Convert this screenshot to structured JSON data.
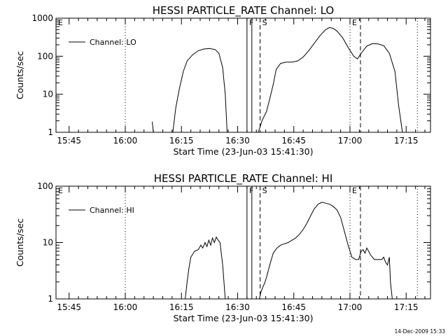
{
  "footer": {
    "timestamp": "14-Dec-2009 15:33"
  },
  "chart_data": [
    {
      "type": "line",
      "title": "HESSI PARTICLE_RATE Channel: LO",
      "xlabel": "Start Time (23-Jun-03 15:41:30)",
      "ylabel": "Counts/sec",
      "x_unit": "minutes since 15:41:30",
      "xlim": [
        0,
        100
      ],
      "ylim": [
        1,
        1000
      ],
      "yscale": "log",
      "x_ticks": [
        {
          "label": "15:45",
          "x": 3.5
        },
        {
          "label": "16:00",
          "x": 18.5
        },
        {
          "label": "16:15",
          "x": 33.5
        },
        {
          "label": "16:30",
          "x": 48.5
        },
        {
          "label": "16:45",
          "x": 63.5
        },
        {
          "label": "17:00",
          "x": 78.5
        },
        {
          "label": "17:15",
          "x": 93.5
        }
      ],
      "y_ticks": [
        {
          "label": "1",
          "y": 1
        },
        {
          "label": "10",
          "y": 10
        },
        {
          "label": "100",
          "y": 100
        },
        {
          "label": "1000",
          "y": 1000
        }
      ],
      "legend": {
        "position": "top-left",
        "entries": [
          "Channel: LO"
        ]
      },
      "grid": false,
      "event_markers": [
        {
          "x": 0.0,
          "label": "E",
          "style": "solid"
        },
        {
          "x": 18.5,
          "label": "",
          "style": "dotted"
        },
        {
          "x": 51.0,
          "label": "F",
          "style": "solid"
        },
        {
          "x": 52.3,
          "label": "",
          "style": "solid"
        },
        {
          "x": 54.5,
          "label": "S",
          "style": "dashed"
        },
        {
          "x": 78.5,
          "label": "E",
          "style": "dotted"
        },
        {
          "x": 81.3,
          "label": "",
          "style": "dashed"
        },
        {
          "x": 96.5,
          "label": "",
          "style": "dotted"
        }
      ],
      "series": [
        {
          "name": "Channel: LO",
          "segments": [
            [
              [
                25.7,
                1.9
              ],
              [
                26.0,
                1.0
              ]
            ],
            [
              [
                31.2,
                1.0
              ],
              [
                32.0,
                4.5
              ],
              [
                33.0,
                15
              ],
              [
                34.0,
                40
              ],
              [
                35.0,
                75
              ],
              [
                36.5,
                110
              ],
              [
                38.0,
                140
              ],
              [
                39.5,
                155
              ],
              [
                41.0,
                160
              ],
              [
                42.5,
                150
              ],
              [
                43.5,
                120
              ],
              [
                44.5,
                50
              ],
              [
                45.2,
                10
              ],
              [
                45.7,
                1.0
              ]
            ],
            [
              [
                54.0,
                1.0
              ],
              [
                54.5,
                1.4
              ],
              [
                55.0,
                2.0
              ],
              [
                55.7,
                2.8
              ],
              [
                56.2,
                3.5
              ],
              [
                57.0,
                7
              ],
              [
                58.0,
                18
              ],
              [
                58.8,
                45
              ],
              [
                60.0,
                65
              ],
              [
                61.5,
                70
              ],
              [
                63.0,
                70
              ],
              [
                64.5,
                75
              ],
              [
                66.0,
                95
              ],
              [
                67.5,
                140
              ],
              [
                69.0,
                220
              ],
              [
                70.5,
                350
              ],
              [
                72.0,
                500
              ],
              [
                73.0,
                570
              ],
              [
                74.0,
                540
              ],
              [
                75.0,
                460
              ],
              [
                76.5,
                310
              ],
              [
                78.0,
                170
              ],
              [
                79.5,
                100
              ],
              [
                80.5,
                85
              ],
              [
                81.5,
                120
              ],
              [
                83.0,
                185
              ],
              [
                84.5,
                215
              ],
              [
                86.0,
                210
              ],
              [
                87.5,
                190
              ],
              [
                89.0,
                120
              ],
              [
                90.5,
                40
              ],
              [
                91.5,
                5
              ],
              [
                92.5,
                1.0
              ]
            ]
          ]
        }
      ]
    },
    {
      "type": "line",
      "title": "HESSI PARTICLE_RATE Channel: HI",
      "xlabel": "Start Time (23-Jun-03 15:41:30)",
      "ylabel": "Counts/sec",
      "x_unit": "minutes since 15:41:30",
      "xlim": [
        0,
        100
      ],
      "ylim": [
        1,
        100
      ],
      "yscale": "log",
      "x_ticks": [
        {
          "label": "15:45",
          "x": 3.5
        },
        {
          "label": "16:00",
          "x": 18.5
        },
        {
          "label": "16:15",
          "x": 33.5
        },
        {
          "label": "16:30",
          "x": 48.5
        },
        {
          "label": "16:45",
          "x": 63.5
        },
        {
          "label": "17:00",
          "x": 78.5
        },
        {
          "label": "17:15",
          "x": 93.5
        }
      ],
      "y_ticks": [
        {
          "label": "1",
          "y": 1
        },
        {
          "label": "10",
          "y": 10
        },
        {
          "label": "100",
          "y": 100
        }
      ],
      "legend": {
        "position": "top-left",
        "entries": [
          "Channel: HI"
        ]
      },
      "grid": false,
      "event_markers": [
        {
          "x": 0.0,
          "label": "E",
          "style": "solid"
        },
        {
          "x": 18.5,
          "label": "",
          "style": "dotted"
        },
        {
          "x": 51.0,
          "label": "F",
          "style": "solid"
        },
        {
          "x": 52.3,
          "label": "",
          "style": "solid"
        },
        {
          "x": 54.5,
          "label": "S",
          "style": "dashed"
        },
        {
          "x": 78.5,
          "label": "E",
          "style": "dotted"
        },
        {
          "x": 81.3,
          "label": "",
          "style": "dashed"
        },
        {
          "x": 96.5,
          "label": "",
          "style": "dotted"
        }
      ],
      "series": [
        {
          "name": "Channel: HI",
          "segments": [
            [
              [
                34.5,
                1.0
              ],
              [
                35.0,
                2.0
              ],
              [
                35.5,
                3.5
              ],
              [
                36.0,
                5.5
              ],
              [
                37.0,
                7
              ],
              [
                38.0,
                7.5
              ],
              [
                38.7,
                9
              ],
              [
                39.2,
                8
              ],
              [
                39.8,
                10
              ],
              [
                40.3,
                8.5
              ],
              [
                40.8,
                11
              ],
              [
                41.3,
                9
              ],
              [
                41.8,
                12
              ],
              [
                42.3,
                10
              ],
              [
                42.8,
                12.5
              ],
              [
                43.3,
                11
              ],
              [
                43.8,
                10
              ],
              [
                44.5,
                4
              ],
              [
                45.2,
                1.0
              ]
            ],
            [
              [
                54.3,
                1.0
              ],
              [
                54.7,
                1.3
              ],
              [
                55.2,
                1.6
              ],
              [
                55.7,
                1.9
              ],
              [
                56.2,
                2.4
              ],
              [
                57.0,
                3.8
              ],
              [
                58.0,
                6.5
              ],
              [
                59.0,
                8
              ],
              [
                60.0,
                9
              ],
              [
                61.0,
                9.5
              ],
              [
                62.0,
                10
              ],
              [
                63.0,
                11
              ],
              [
                64.0,
                12
              ],
              [
                65.0,
                14
              ],
              [
                66.0,
                17
              ],
              [
                67.0,
                22
              ],
              [
                68.0,
                30
              ],
              [
                69.0,
                40
              ],
              [
                70.0,
                48
              ],
              [
                71.0,
                52
              ],
              [
                72.0,
                50
              ],
              [
                73.0,
                48
              ],
              [
                74.0,
                44
              ],
              [
                75.0,
                38
              ],
              [
                76.0,
                28
              ],
              [
                77.0,
                16
              ],
              [
                78.0,
                9
              ],
              [
                79.0,
                5.5
              ],
              [
                80.0,
                5
              ],
              [
                80.8,
                5
              ],
              [
                81.5,
                7
              ],
              [
                82.0,
                7.5
              ],
              [
                82.5,
                6.5
              ],
              [
                83.0,
                8
              ],
              [
                83.5,
                7
              ],
              [
                84.0,
                6
              ],
              [
                84.5,
                5.5
              ],
              [
                85.0,
                5
              ],
              [
                86.0,
                5
              ],
              [
                87.0,
                5
              ],
              [
                87.5,
                5.5
              ],
              [
                88.0,
                4.5
              ],
              [
                88.5,
                4
              ],
              [
                89.0,
                5.5
              ],
              [
                89.3,
                2
              ],
              [
                89.8,
                1.0
              ]
            ]
          ]
        }
      ]
    }
  ]
}
